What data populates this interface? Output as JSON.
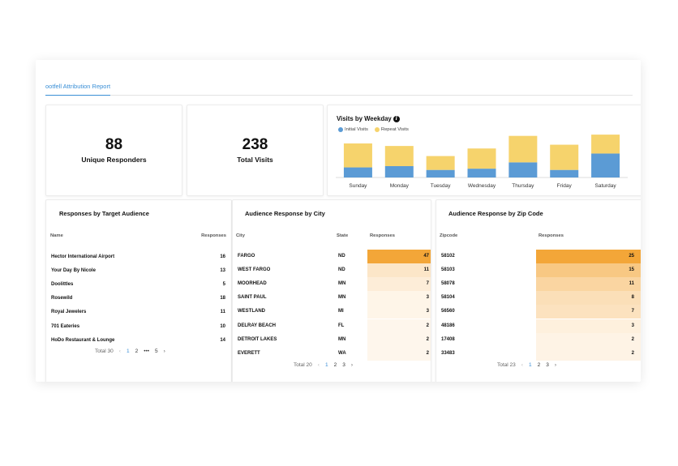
{
  "tab": {
    "label": "ootfell Attribution Report"
  },
  "stats": [
    {
      "value": "88",
      "label": "Unique Responders"
    },
    {
      "value": "238",
      "label": "Total Visits"
    }
  ],
  "weekday_chart": {
    "title": "Visits by Weekday",
    "info_icon": "info-icon",
    "legend": [
      {
        "label": "Initial Visits",
        "color": "#5b9bd5"
      },
      {
        "label": "Repeat Visits",
        "color": "#f6d36c"
      }
    ]
  },
  "chart_data": {
    "type": "bar",
    "stacked": true,
    "title": "Visits by Weekday",
    "categories": [
      "Sunday",
      "Monday",
      "Tuesday",
      "Wednesday",
      "Thursday",
      "Friday",
      "Saturday"
    ],
    "series": [
      {
        "name": "Initial Visits",
        "values": [
          8,
          9,
          6,
          7,
          12,
          6,
          19
        ],
        "color": "#5b9bd5"
      },
      {
        "name": "Repeat Visits",
        "values": [
          19,
          16,
          11,
          16,
          21,
          20,
          15
        ],
        "color": "#f6d36c"
      }
    ],
    "ylim": [
      0,
      36
    ],
    "grid": false,
    "legend": "top-left"
  },
  "audience_table": {
    "title": "Responses by Target Audience",
    "headers": [
      "Name",
      "Responses"
    ],
    "rows": [
      {
        "name": "Hector International Airport",
        "responses": "16"
      },
      {
        "name": "Your Day By Nicole",
        "responses": "13"
      },
      {
        "name": "Doolittles",
        "responses": "5"
      },
      {
        "name": "Rosewild",
        "responses": "18"
      },
      {
        "name": "Royal Jewelers",
        "responses": "11"
      },
      {
        "name": "701 Eateries",
        "responses": "10"
      },
      {
        "name": "HoDo Restaurant & Lounge",
        "responses": "14"
      }
    ],
    "pager": {
      "total": "Total 30",
      "pages": [
        "1",
        "2",
        "•••",
        "5"
      ]
    }
  },
  "city_table": {
    "title": "Audience Response by City",
    "headers": [
      "City",
      "State",
      "Responses"
    ],
    "rows": [
      {
        "city": "FARGO",
        "state": "ND",
        "responses": "47"
      },
      {
        "city": "WEST FARGO",
        "state": "ND",
        "responses": "11"
      },
      {
        "city": "MOORHEAD",
        "state": "MN",
        "responses": "7"
      },
      {
        "city": "SAINT PAUL",
        "state": "MN",
        "responses": "3"
      },
      {
        "city": "WESTLAND",
        "state": "MI",
        "responses": "3"
      },
      {
        "city": "DELRAY BEACH",
        "state": "FL",
        "responses": "2"
      },
      {
        "city": "DETROIT LAKES",
        "state": "MN",
        "responses": "2"
      },
      {
        "city": "EVERETT",
        "state": "WA",
        "responses": "2"
      }
    ],
    "pager": {
      "total": "Total 20",
      "pages": [
        "1",
        "2",
        "3"
      ]
    }
  },
  "zip_table": {
    "title": "Audience Response by Zip Code",
    "headers": [
      "Zipcode",
      "Responses"
    ],
    "rows": [
      {
        "zip": "58102",
        "responses": "25"
      },
      {
        "zip": "58103",
        "responses": "15"
      },
      {
        "zip": "58078",
        "responses": "11"
      },
      {
        "zip": "58104",
        "responses": "8"
      },
      {
        "zip": "56560",
        "responses": "7"
      },
      {
        "zip": "48186",
        "responses": "3"
      },
      {
        "zip": "17408",
        "responses": "2"
      },
      {
        "zip": "33483",
        "responses": "2"
      }
    ],
    "pager": {
      "total": "Total 23",
      "pages": [
        "1",
        "2",
        "3"
      ]
    }
  },
  "icons": {
    "prev": "chevron-left-icon",
    "next": "chevron-right-icon"
  }
}
